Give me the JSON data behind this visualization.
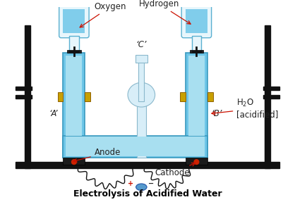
{
  "title": "Electrolysis of Acidified Water",
  "bg_color": "#ffffff",
  "tube_color": "#6ec6e8",
  "tube_color2": "#a8dff0",
  "tube_edge": "#3a9abf",
  "stand_color": "#111111",
  "bottle_fill": "#b8e4f4",
  "bottle_edge": "#5ab0d0",
  "bottle_glass": "#e8f6fc",
  "electrode_color": "#2a2a2a",
  "connector_color": "#c8a000",
  "wire_color": "#111111",
  "label_color": "#222222",
  "arrow_color": "#cc1100",
  "h2o_sub": "2",
  "oxygen_label": "Oxygen",
  "hydrogen_label": "Hydrogen",
  "a_label": "‘A’",
  "b_label": "‘B’",
  "c_label": "‘C’",
  "anode_label": "Anode",
  "cathode_label": "Cathode",
  "plus_color": "#cc1100",
  "minus_color": "#222222",
  "center_tube_color": "#d8eef8",
  "center_tube_edge": "#8ab8cc"
}
